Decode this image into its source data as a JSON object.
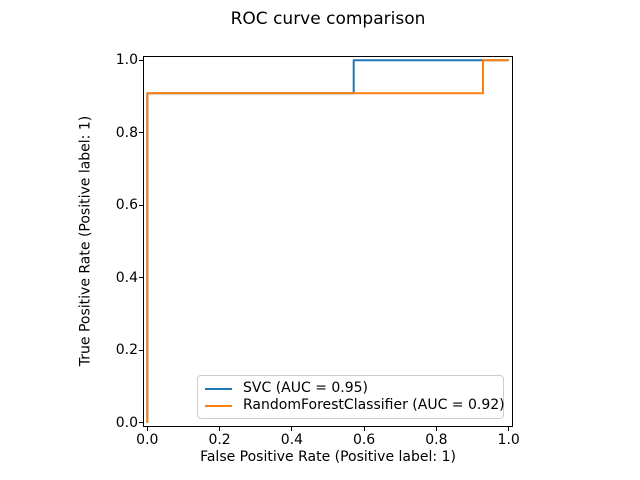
{
  "title": "ROC curve comparison",
  "chart_data": {
    "type": "line",
    "subtype": "roc-step-curves",
    "title": "ROC curve comparison",
    "xlabel": "False Positive Rate (Positive label: 1)",
    "ylabel": "True Positive Rate (Positive label: 1)",
    "xlim": [
      -0.012,
      1.012
    ],
    "ylim": [
      -0.012,
      1.012
    ],
    "x_ticks": [
      0.0,
      0.2,
      0.4,
      0.6,
      0.8,
      1.0
    ],
    "x_tick_labels": [
      "0.0",
      "0.2",
      "0.4",
      "0.6",
      "0.8",
      "1.0"
    ],
    "y_ticks": [
      0.0,
      0.2,
      0.4,
      0.6,
      0.8,
      1.0
    ],
    "y_tick_labels": [
      "0.0",
      "0.2",
      "0.4",
      "0.6",
      "0.8",
      "1.0"
    ],
    "grid": false,
    "legend_position": "lower right inside plot",
    "axes_color": "#000000",
    "legend_border_color": "#cccccc",
    "series": [
      {
        "name": "SVC",
        "auc": 0.95,
        "label": "SVC (AUC = 0.95)",
        "color": "#1f77b4",
        "points": [
          [
            0.0,
            0.0
          ],
          [
            0.0,
            0.909
          ],
          [
            0.571,
            0.909
          ],
          [
            0.571,
            1.0
          ],
          [
            1.0,
            1.0
          ]
        ]
      },
      {
        "name": "RandomForestClassifier",
        "auc": 0.92,
        "label": "RandomForestClassifier (AUC = 0.92)",
        "color": "#ff7f0e",
        "points": [
          [
            0.0,
            0.0
          ],
          [
            0.0,
            0.909
          ],
          [
            0.929,
            0.909
          ],
          [
            0.929,
            1.0
          ],
          [
            1.0,
            1.0
          ]
        ]
      }
    ]
  }
}
